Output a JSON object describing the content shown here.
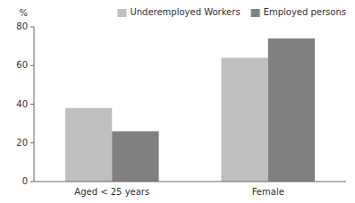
{
  "chart_data": {
    "type": "bar",
    "categories": [
      "Aged < 25 years",
      "Female"
    ],
    "series": [
      {
        "name": "Underemployed Workers",
        "color": "#c0c0c0",
        "values": [
          38,
          64
        ]
      },
      {
        "name": "Employed persons",
        "color": "#808080",
        "values": [
          26,
          74
        ]
      }
    ],
    "y_label": "%",
    "ylim": [
      0,
      80
    ],
    "yticks": [
      0,
      20,
      40,
      60,
      80
    ],
    "grid": false,
    "legend": "upper right"
  }
}
